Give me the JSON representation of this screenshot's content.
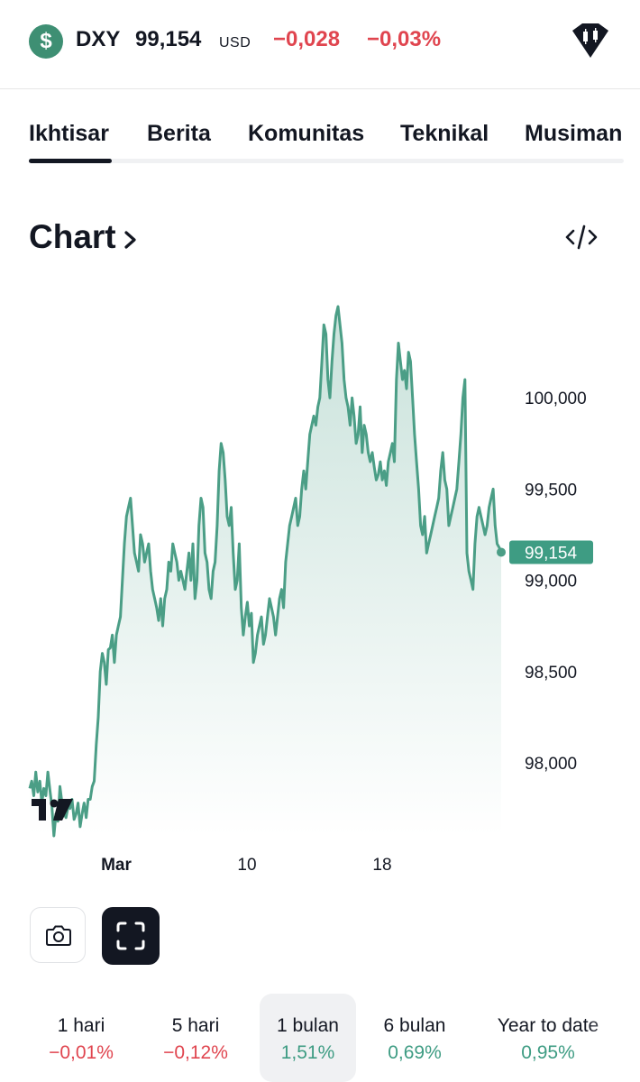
{
  "header": {
    "coin_glyph": "$",
    "symbol": "DXY",
    "price": "99,154",
    "currency": "USD",
    "change": "−0,028",
    "change_pct": "−0,03%",
    "logo_icon": "candlestick-shield-icon"
  },
  "tabs": [
    {
      "label": "Ikhtisar",
      "active": true
    },
    {
      "label": "Berita",
      "active": false
    },
    {
      "label": "Komunitas",
      "active": false
    },
    {
      "label": "Teknikal",
      "active": false
    },
    {
      "label": "Musiman",
      "active": false
    }
  ],
  "chart_section": {
    "title": "Chart",
    "chevron_icon": "chevron-right-icon",
    "embed_icon": "code-icon"
  },
  "chart_data": {
    "type": "area",
    "x_labels": [
      "Mar",
      "10",
      "18"
    ],
    "y_ticks": [
      "100,000",
      "99,500",
      "99,000",
      "98,500",
      "98,000"
    ],
    "y_tick_values": [
      100000,
      99500,
      99000,
      98500,
      98000
    ],
    "ylim": [
      97600,
      100500
    ],
    "last_value_label": "99,154",
    "last_value": 99154,
    "watermark": "TV",
    "series": [
      {
        "values": [
          97860,
          97900,
          97820,
          97950,
          97840,
          97900,
          97780,
          97860,
          97820,
          97950,
          97850,
          97760,
          97600,
          97720,
          97680,
          97870,
          97780,
          97720,
          97700,
          97760,
          97750,
          97800,
          97690,
          97720,
          97780,
          97650,
          97720,
          97780,
          97700,
          97800,
          97800,
          97870,
          97900,
          98100,
          98250,
          98500,
          98600,
          98550,
          98430,
          98620,
          98630,
          98700,
          98550,
          98700,
          98750,
          98800,
          99000,
          99200,
          99350,
          99400,
          99450,
          99300,
          99150,
          99100,
          99050,
          99250,
          99200,
          99100,
          99150,
          99200,
          99050,
          98950,
          98900,
          98850,
          98780,
          98900,
          98750,
          98900,
          98950,
          99100,
          99050,
          99200,
          99150,
          99100,
          99000,
          99050,
          99000,
          98950,
          99050,
          99150,
          99000,
          99200,
          98900,
          99000,
          99300,
          99450,
          99400,
          99150,
          99100,
          98950,
          98900,
          99050,
          99100,
          99300,
          99600,
          99750,
          99700,
          99550,
          99350,
          99300,
          99400,
          99150,
          98950,
          99000,
          99200,
          98850,
          98700,
          98800,
          98880,
          98750,
          98820,
          98550,
          98600,
          98700,
          98750,
          98800,
          98650,
          98700,
          98800,
          98900,
          98850,
          98800,
          98700,
          98800,
          98900,
          98950,
          98850,
          99100,
          99200,
          99300,
          99350,
          99400,
          99450,
          99300,
          99350,
          99500,
          99600,
          99500,
          99650,
          99800,
          99850,
          99900,
          99850,
          99950,
          100000,
          100200,
          100400,
          100350,
          100100,
          100000,
          100200,
          100350,
          100450,
          100500,
          100400,
          100300,
          100100,
          100000,
          99950,
          99850,
          100000,
          99900,
          99750,
          99800,
          99950,
          99700,
          99850,
          99800,
          99700,
          99650,
          99700,
          99620,
          99550,
          99580,
          99650,
          99550,
          99600,
          99520,
          99650,
          99700,
          99750,
          99650,
          100100,
          100300,
          100200,
          100100,
          100150,
          100050,
          100250,
          100200,
          100000,
          99800,
          99650,
          99500,
          99300,
          99250,
          99350,
          99150,
          99200,
          99250,
          99300,
          99350,
          99400,
          99450,
          99600,
          99700,
          99550,
          99500,
          99300,
          99350,
          99400,
          99450,
          99500,
          99650,
          99800,
          100000,
          100100,
          99150,
          99050,
          99000,
          98950,
          99200,
          99350,
          99400,
          99350,
          99300,
          99250,
          99300,
          99400,
          99450,
          99500,
          99300,
          99200,
          99180,
          99154
        ]
      }
    ]
  },
  "actions": {
    "camera_icon": "camera-icon",
    "fullscreen_icon": "fullscreen-icon"
  },
  "periods": [
    {
      "label": "1 hari",
      "value": "−0,01%",
      "sign": "neg",
      "active": false
    },
    {
      "label": "5 hari",
      "value": "−0,12%",
      "sign": "neg",
      "active": false
    },
    {
      "label": "1 bulan",
      "value": "1,51%",
      "sign": "pos",
      "active": true
    },
    {
      "label": "6 bulan",
      "value": "0,69%",
      "sign": "pos",
      "active": false
    },
    {
      "label": "Year to date",
      "value": "0,95%",
      "sign": "pos",
      "active": false
    }
  ],
  "colors": {
    "accent_green": "#3e9c83",
    "line_green": "#4b9e86",
    "negative_red": "#e0454f",
    "text_dark": "#131722"
  }
}
